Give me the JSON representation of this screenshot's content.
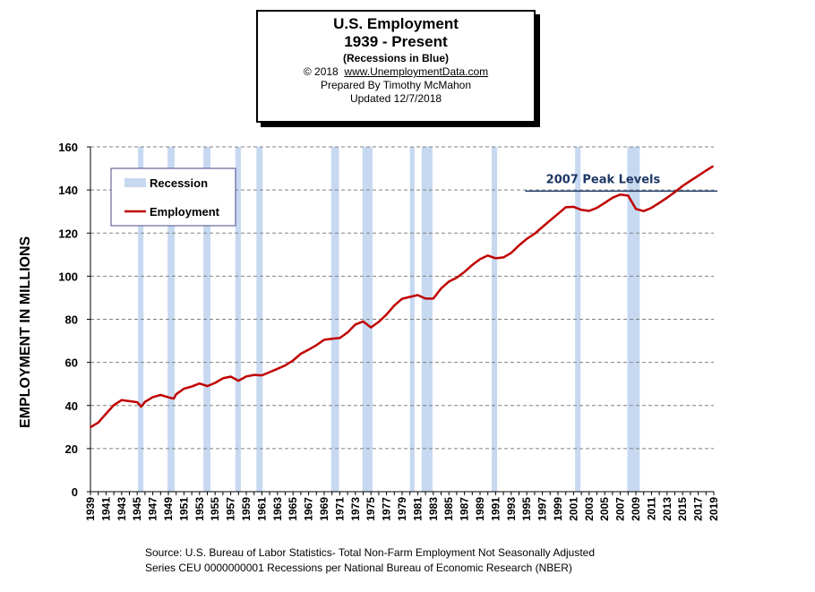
{
  "title": {
    "line1": "U.S. Employment",
    "line2": "1939 - Present",
    "line3": "(Recessions  in Blue)",
    "copyright": "© 2018",
    "site": "www.UnemploymentData.com",
    "prepared": "Prepared  By Timothy  McMahon",
    "updated": "Updated  12/7/2018"
  },
  "y_axis_label": "EMPLOYMENT IN MILLIONS",
  "legend": {
    "recession": "Recession",
    "employment": "Employment"
  },
  "annotation": {
    "label": "2007 Peak Levels",
    "value": 139.5
  },
  "source": {
    "line1": "Source: U.S.  Bureau of Labor Statistics-  Total Non-Farm Employment Not Seasonally Adjusted",
    "line2": "Series CEU 0000000001    Recessions per National Bureau of Economic Research (NBER)"
  },
  "colors": {
    "line": "#c00000",
    "recession": "#c6d9f1",
    "grid": "#808080",
    "peak_line": "#1f3864",
    "peak_text": "#1f3864"
  },
  "chart_data": {
    "type": "line",
    "xlim": [
      1939,
      2019
    ],
    "ylim": [
      0,
      160
    ],
    "yticks": [
      0,
      20,
      40,
      60,
      80,
      100,
      120,
      140,
      160
    ],
    "xtick_labels": [
      "1939",
      "1941",
      "1943",
      "1945",
      "1947",
      "1949",
      "1951",
      "1953",
      "1955",
      "1957",
      "1959",
      "1961",
      "1963",
      "1965",
      "1967",
      "1969",
      "1971",
      "1973",
      "1975",
      "1977",
      "1979",
      "1981",
      "1983",
      "1985",
      "1987",
      "1989",
      "1991",
      "1993",
      "1995",
      "1997",
      "1999",
      "2001",
      "2003",
      "2005",
      "2007",
      "2009",
      "2011",
      "2013",
      "2015",
      "2017",
      "2019"
    ],
    "recessions": [
      [
        1945.1,
        1945.8
      ],
      [
        1948.9,
        1949.8
      ],
      [
        1953.5,
        1954.4
      ],
      [
        1957.6,
        1958.3
      ],
      [
        1960.3,
        1961.1
      ],
      [
        1969.9,
        1970.9
      ],
      [
        1973.9,
        1975.2
      ],
      [
        1980.0,
        1980.6
      ],
      [
        1981.5,
        1982.9
      ],
      [
        1990.5,
        1991.2
      ],
      [
        2001.2,
        2001.9
      ],
      [
        2007.9,
        2009.5
      ]
    ],
    "series": [
      {
        "name": "Employment",
        "x": [
          1939,
          1940,
          1941,
          1942,
          1943,
          1944,
          1945,
          1945.5,
          1946,
          1947,
          1948,
          1949,
          1949.7,
          1950,
          1951,
          1952,
          1953,
          1954,
          1955,
          1956,
          1957,
          1958,
          1959,
          1960,
          1961,
          1962,
          1963,
          1964,
          1965,
          1966,
          1967,
          1968,
          1969,
          1970,
          1971,
          1972,
          1973,
          1974,
          1975,
          1976,
          1977,
          1978,
          1979,
          1980,
          1981,
          1982,
          1983,
          1984,
          1985,
          1986,
          1987,
          1988,
          1989,
          1990,
          1991,
          1992,
          1993,
          1994,
          1995,
          1996,
          1997,
          1998,
          1999,
          2000,
          2001,
          2002,
          2003,
          2004,
          2005,
          2006,
          2007,
          2008,
          2009,
          2010,
          2011,
          2012,
          2013,
          2014,
          2015,
          2016,
          2017,
          2018,
          2018.9
        ],
        "values": [
          29.9,
          32.1,
          36.2,
          40.2,
          42.5,
          42.0,
          41.5,
          39.5,
          41.7,
          43.9,
          44.9,
          43.8,
          43.2,
          45.2,
          47.8,
          48.8,
          50.2,
          49.0,
          50.5,
          52.6,
          53.4,
          51.5,
          53.5,
          54.2,
          54.0,
          55.5,
          57.0,
          58.6,
          60.9,
          64.0,
          65.9,
          68.0,
          70.5,
          71.0,
          71.3,
          73.9,
          77.6,
          79.0,
          76.2,
          78.8,
          82.2,
          86.4,
          89.5,
          90.4,
          91.2,
          89.6,
          89.6,
          94.3,
          97.5,
          99.3,
          102.0,
          105.2,
          107.9,
          109.6,
          108.3,
          108.7,
          110.8,
          114.3,
          117.3,
          119.7,
          122.8,
          125.9,
          128.9,
          132.0,
          132.2,
          130.8,
          130.3,
          131.7,
          134.0,
          136.4,
          137.9,
          137.4,
          131.2,
          130.2,
          131.7,
          134.0,
          136.4,
          139.0,
          141.9,
          144.3,
          146.6,
          149.0,
          151.0
        ]
      }
    ]
  }
}
